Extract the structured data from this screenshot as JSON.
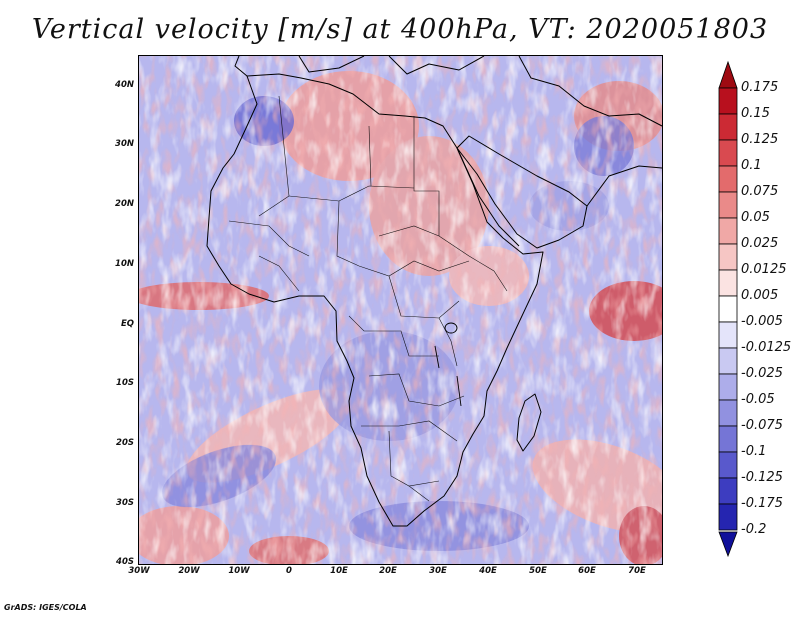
{
  "title": "Vertical velocity [m/s] at 400hPa, VT: 2020051803",
  "credit": "GrADS: IGES/COLA",
  "map": {
    "lon_range": [
      -30,
      75
    ],
    "lat_range": [
      -40,
      45
    ],
    "lat_ticks": [
      "40N",
      "30N",
      "20N",
      "10N",
      "EQ",
      "10S",
      "20S",
      "30S",
      "40S"
    ],
    "lon_ticks": [
      "30W",
      "20W",
      "10W",
      "0",
      "10E",
      "20E",
      "30E",
      "40E",
      "50E",
      "60E",
      "70E"
    ]
  },
  "colorbar": {
    "labels": [
      "0.175",
      "0.15",
      "0.125",
      "0.1",
      "0.075",
      "0.05",
      "0.025",
      "0.0125",
      "0.005",
      "-0.005",
      "-0.0125",
      "-0.025",
      "-0.05",
      "-0.075",
      "-0.1",
      "-0.125",
      "-0.175",
      "-0.2"
    ],
    "colors": [
      "#9e0a12",
      "#b8101e",
      "#cc2a34",
      "#d94a50",
      "#e36b6c",
      "#ea8a89",
      "#f0a8a6",
      "#f6c6c4",
      "#fbe3e2",
      "#ffffff",
      "#e4e4fa",
      "#c9c9f2",
      "#adadea",
      "#9191e0",
      "#7575d6",
      "#5959cc",
      "#3d3dc0",
      "#2525b0",
      "#10109a"
    ]
  }
}
